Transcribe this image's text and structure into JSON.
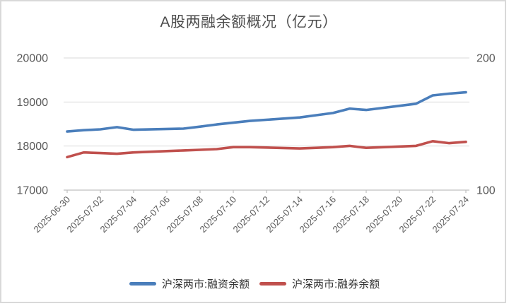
{
  "card": {
    "title": "A股两融余额概况（亿元）"
  },
  "legend": [
    {
      "label": "沪深两市:融资余额",
      "color": "#4a7ebb"
    },
    {
      "label": "沪深两市:融券余额",
      "color": "#c0504d"
    }
  ],
  "colors": {
    "blue_series": "#4a7ebb",
    "red_series": "#c0504d",
    "gridline": "#d9d9d9",
    "axis_line": "#bfbfbf",
    "axis_text": "#595959",
    "title_text": "#4d4d4d",
    "legend_text": "#333333",
    "card_border": "#d9d9d9"
  },
  "chart_data": {
    "type": "line",
    "title": "A股两融余额概况（亿元）",
    "xlabel": "",
    "ylabel_left": "",
    "ylabel_right": "",
    "x_type": "time",
    "x_range": [
      "2025-06-30",
      "2025-07-24"
    ],
    "x_tick_labels": [
      "2025-06-30",
      "2025-07-02",
      "2025-07-04",
      "2025-07-06",
      "2025-07-08",
      "2025-07-10",
      "2025-07-12",
      "2025-07-14",
      "2025-07-16",
      "2025-07-18",
      "2025-07-20",
      "2025-07-22",
      "2025-07-24"
    ],
    "left_axis": {
      "min": 17000,
      "max": 20000,
      "ticks": [
        20000,
        19000,
        18000,
        17000
      ]
    },
    "right_axis": {
      "min": 100,
      "max": 200,
      "ticks": [
        200,
        100
      ]
    },
    "grid": true,
    "legend_position": "bottom",
    "x_label_rotation_deg": 45,
    "series": [
      {
        "name": "沪深两市:融资余额",
        "axis": "left",
        "color": "#4a7ebb",
        "x": [
          "2025-06-30",
          "2025-07-01",
          "2025-07-02",
          "2025-07-03",
          "2025-07-04",
          "2025-07-07",
          "2025-07-08",
          "2025-07-09",
          "2025-07-10",
          "2025-07-11",
          "2025-07-14",
          "2025-07-15",
          "2025-07-16",
          "2025-07-17",
          "2025-07-18",
          "2025-07-21",
          "2025-07-22",
          "2025-07-23",
          "2025-07-24"
        ],
        "values": [
          18330,
          18360,
          18380,
          18430,
          18370,
          18395,
          18440,
          18490,
          18530,
          18570,
          18650,
          18700,
          18750,
          18850,
          18820,
          18960,
          19150,
          19190,
          19220
        ]
      },
      {
        "name": "沪深两市:融券余额",
        "axis": "right",
        "color": "#c0504d",
        "x": [
          "2025-06-30",
          "2025-07-01",
          "2025-07-02",
          "2025-07-03",
          "2025-07-04",
          "2025-07-07",
          "2025-07-08",
          "2025-07-09",
          "2025-07-10",
          "2025-07-11",
          "2025-07-14",
          "2025-07-15",
          "2025-07-16",
          "2025-07-17",
          "2025-07-18",
          "2025-07-21",
          "2025-07-22",
          "2025-07-23",
          "2025-07-24"
        ],
        "values": [
          125,
          128.5,
          128,
          127.5,
          128.5,
          130,
          130.5,
          131,
          132.5,
          132.5,
          131.5,
          132,
          132.5,
          133.5,
          132,
          133.5,
          137,
          135.5,
          136.5
        ]
      }
    ]
  }
}
